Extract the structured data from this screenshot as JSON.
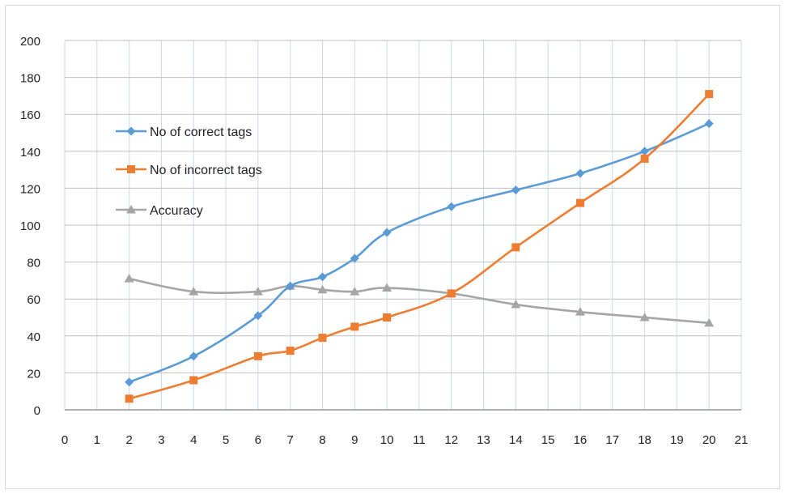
{
  "chart_data": {
    "type": "line",
    "xlim": [
      0,
      21
    ],
    "ylim": [
      0,
      200
    ],
    "x_ticks": [
      "0",
      "1",
      "2",
      "3",
      "4",
      "5",
      "6",
      "7",
      "8",
      "9",
      "10",
      "11",
      "12",
      "13",
      "14",
      "15",
      "16",
      "17",
      "18",
      "19",
      "20",
      "21"
    ],
    "y_ticks": [
      "0",
      "20",
      "40",
      "60",
      "80",
      "100",
      "120",
      "140",
      "160",
      "180",
      "200"
    ],
    "grid": true,
    "legend_position": "left-middle",
    "series": [
      {
        "name": "No of correct tags",
        "color": "#5b9bd5",
        "marker": "diamond",
        "points": [
          [
            2,
            15
          ],
          [
            4,
            29
          ],
          [
            6,
            51
          ],
          [
            7,
            67
          ],
          [
            8,
            72
          ],
          [
            9,
            82
          ],
          [
            10,
            96
          ],
          [
            12,
            110
          ],
          [
            14,
            119
          ],
          [
            16,
            128
          ],
          [
            18,
            140
          ],
          [
            20,
            155
          ]
        ]
      },
      {
        "name": "No of incorrect tags",
        "color": "#ed7d31",
        "marker": "square",
        "points": [
          [
            2,
            6
          ],
          [
            4,
            16
          ],
          [
            6,
            29
          ],
          [
            7,
            32
          ],
          [
            8,
            39
          ],
          [
            9,
            45
          ],
          [
            10,
            50
          ],
          [
            12,
            63
          ],
          [
            14,
            88
          ],
          [
            16,
            112
          ],
          [
            18,
            136
          ],
          [
            20,
            171
          ]
        ]
      },
      {
        "name": "Accuracy",
        "color": "#a5a5a5",
        "marker": "triangle",
        "points": [
          [
            2,
            71
          ],
          [
            4,
            64
          ],
          [
            6,
            64
          ],
          [
            7,
            67
          ],
          [
            8,
            65
          ],
          [
            9,
            64
          ],
          [
            10,
            66
          ],
          [
            12,
            63
          ],
          [
            14,
            57
          ],
          [
            16,
            53
          ],
          [
            18,
            50
          ],
          [
            20,
            47
          ]
        ]
      }
    ]
  }
}
